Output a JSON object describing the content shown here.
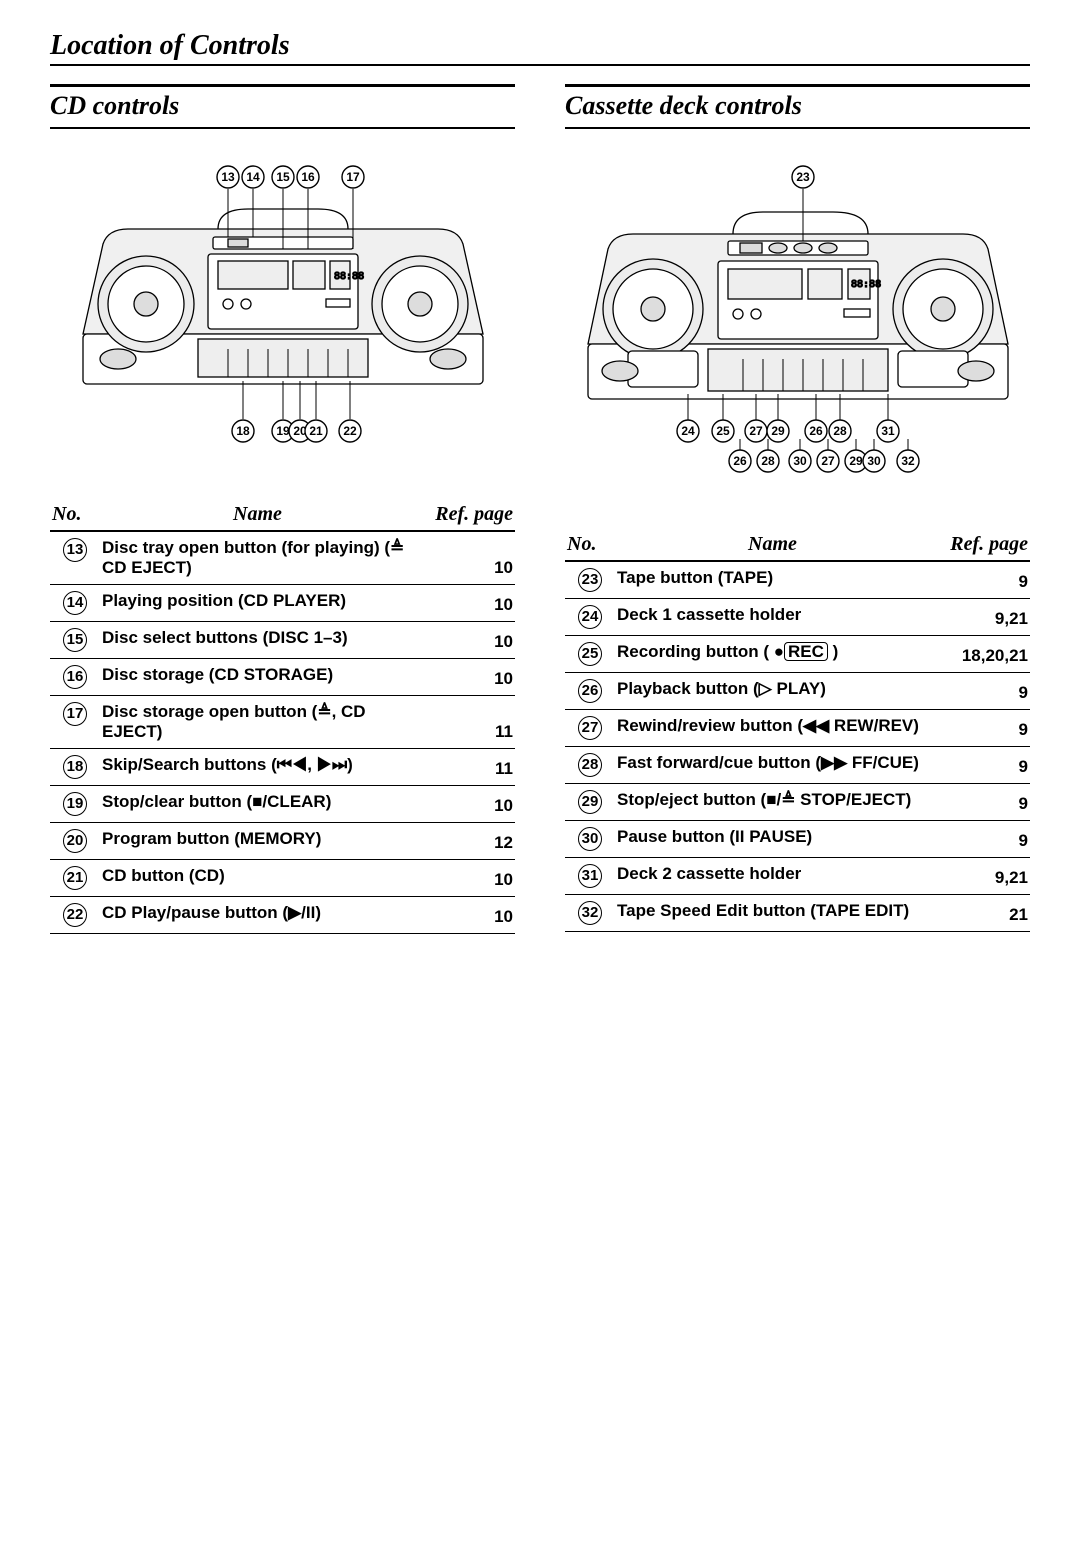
{
  "page_title": "Location of Controls",
  "sections": {
    "left": {
      "title": "CD controls",
      "header": {
        "no": "No.",
        "name": "Name",
        "ref": "Ref. page"
      },
      "rows": [
        {
          "no": "13",
          "name": "Disc tray open button (for playing) (≜ CD EJECT)",
          "ref": "10"
        },
        {
          "no": "14",
          "name": "Playing position (CD PLAYER)",
          "ref": "10"
        },
        {
          "no": "15",
          "name": "Disc select buttons (DISC 1–3)",
          "ref": "10"
        },
        {
          "no": "16",
          "name": "Disc storage (CD STORAGE)",
          "ref": "10"
        },
        {
          "no": "17",
          "name": "Disc storage open button (≜, CD EJECT)",
          "ref": "11"
        },
        {
          "no": "18",
          "name": "Skip/Search buttons (⏮◀, ▶⏭)",
          "ref": "11"
        },
        {
          "no": "19",
          "name": "Stop/clear button (■/CLEAR)",
          "ref": "10"
        },
        {
          "no": "20",
          "name": "Program button (MEMORY)",
          "ref": "12"
        },
        {
          "no": "21",
          "name": "CD button (CD)",
          "ref": "10"
        },
        {
          "no": "22",
          "name": "CD Play/pause button (▶/II)",
          "ref": "10"
        }
      ]
    },
    "right": {
      "title": "Cassette deck controls",
      "header": {
        "no": "No.",
        "name": "Name",
        "ref": "Ref. page"
      },
      "rows": [
        {
          "no": "23",
          "name": "Tape button (TAPE)",
          "ref": "9"
        },
        {
          "no": "24",
          "name": "Deck 1 cassette holder",
          "ref": "9,21"
        },
        {
          "no": "25",
          "name_html": "Recording button ( ●<span class='recbox'>REC</span> )",
          "ref": "18,20,21"
        },
        {
          "no": "26",
          "name": "Playback button (▷ PLAY)",
          "ref": "9"
        },
        {
          "no": "27",
          "name": "Rewind/review button (◀◀ REW/REV)",
          "ref": "9"
        },
        {
          "no": "28",
          "name": "Fast forward/cue button (▶▶ FF/CUE)",
          "ref": "9"
        },
        {
          "no": "29",
          "name": "Stop/eject button (■/≜ STOP/EJECT)",
          "ref": "9"
        },
        {
          "no": "30",
          "name": "Pause button (II PAUSE)",
          "ref": "9"
        },
        {
          "no": "31",
          "name": "Deck 2 cassette holder",
          "ref": "9,21"
        },
        {
          "no": "32",
          "name": "Tape Speed Edit button (TAPE EDIT)",
          "ref": "21"
        }
      ]
    }
  },
  "diagram": {
    "left_callouts_top": [
      "13",
      "14",
      "15",
      "16",
      "17"
    ],
    "left_callouts_bottom": [
      "18",
      "19",
      "20",
      "21",
      "22"
    ],
    "right_callouts_top": [
      "23"
    ],
    "right_callouts_bottom_row1": [
      "24",
      "25",
      "27",
      "29",
      "26",
      "28",
      "31"
    ],
    "right_callouts_bottom_row2": [
      "26",
      "28",
      "30",
      "27",
      "29",
      "30",
      "32"
    ],
    "colors": {
      "stroke": "#000",
      "bg": "#fff",
      "shade": "#e6e6e6"
    }
  }
}
